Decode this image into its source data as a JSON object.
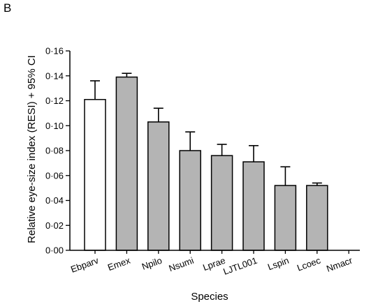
{
  "panel_label": "B",
  "chart_data": {
    "type": "bar",
    "xlabel": "Species",
    "ylabel": "Relative eye-size index (RESI) + 95% CI",
    "ylim": [
      0,
      0.16
    ],
    "yticks": [
      0,
      0.02,
      0.04,
      0.06,
      0.08,
      0.1,
      0.12,
      0.14,
      0.16
    ],
    "ytick_labels": [
      "0·00",
      "0·02",
      "0·04",
      "0·06",
      "0·08",
      "0·10",
      "0·12",
      "0·14",
      "0·16"
    ],
    "categories": [
      "Ebparv",
      "Emex",
      "Npilo",
      "Nsumi",
      "Lprae",
      "LJTL001",
      "Lspin",
      "Lcoec",
      "Nmacr"
    ],
    "values": [
      0.121,
      0.139,
      0.103,
      0.08,
      0.076,
      0.071,
      0.052,
      0.052,
      null
    ],
    "ci_upper": [
      0.136,
      0.142,
      0.114,
      0.095,
      0.085,
      0.084,
      0.067,
      0.054,
      null
    ],
    "bar_fill": [
      "white",
      "gray",
      "gray",
      "gray",
      "gray",
      "gray",
      "gray",
      "gray",
      "black"
    ],
    "colors": {
      "white": "#ffffff",
      "gray": "#b4b4b4",
      "black": "#000000",
      "edge": "#000000"
    },
    "grid": false
  }
}
